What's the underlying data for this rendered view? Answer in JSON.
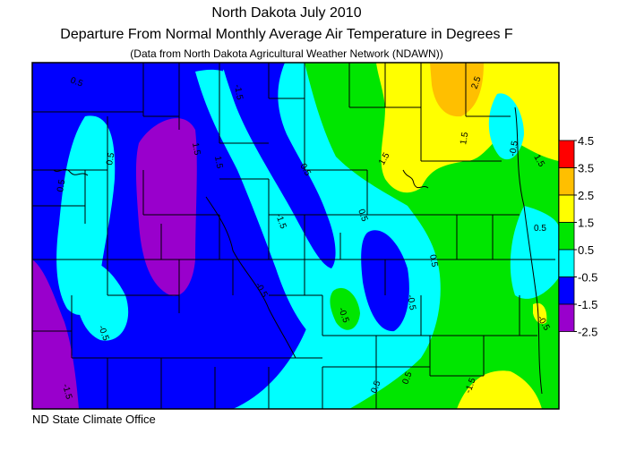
{
  "title": "North Dakota July 2010",
  "subtitle": "Departure From Normal Monthly Average Air Temperature in Degrees F",
  "source_note": "(Data from North Dakota Agricultural Weather Network (NDAWN))",
  "credit": "ND State Climate Office",
  "legend": {
    "ticks": [
      "4.5",
      "3.5",
      "2.5",
      "1.5",
      "0.5",
      "-0.5",
      "-1.5",
      "-2.5"
    ],
    "bands": [
      {
        "range": "3.5 to 4.5",
        "color": "#ff0000"
      },
      {
        "range": "2.5 to 3.5",
        "color": "#ffbf00"
      },
      {
        "range": "1.5 to 2.5",
        "color": "#ffff00"
      },
      {
        "range": "0.5 to 1.5",
        "color": "#00e600"
      },
      {
        "range": "-0.5 to 0.5",
        "color": "#00ffff"
      },
      {
        "range": "-1.5 to -0.5",
        "color": "#0000ff"
      },
      {
        "range": "-2.5 to -1.5",
        "color": "#9900cc"
      }
    ]
  },
  "contour_labels": [
    "0.5",
    "1.5",
    "1.5",
    "0.5",
    "0.5",
    "0.5",
    "-1.5",
    "-1.5",
    "-1.5",
    "-0.5",
    "-0.5",
    "-0.5",
    "-0.5",
    "0.5",
    "0.5",
    "0.5",
    "0.5",
    "1.5",
    "1.5",
    "2.5",
    "-0.5",
    "-0.5",
    "0.5",
    "1.5",
    "-1.5"
  ]
}
